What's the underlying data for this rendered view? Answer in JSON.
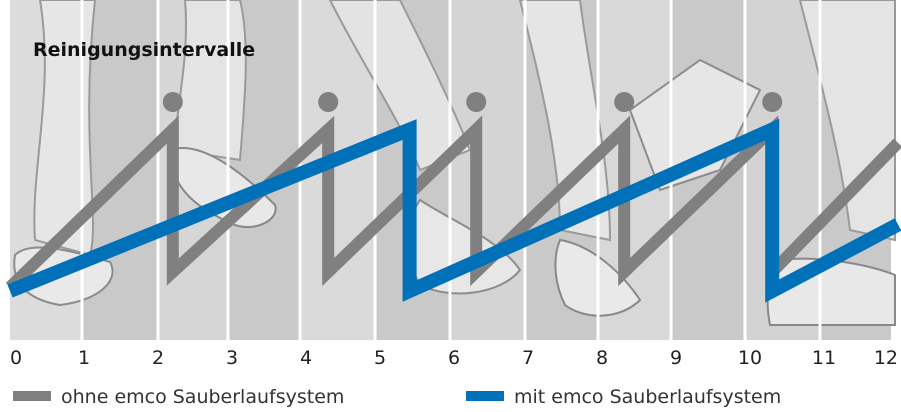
{
  "chart_data": {
    "type": "line",
    "title": "Reinigungsintervalle",
    "xlabel": "",
    "ylabel": "",
    "x_ticks": [
      "0",
      "1",
      "2",
      "3",
      "4",
      "5",
      "6",
      "7",
      "8",
      "9",
      "10",
      "11",
      "12"
    ],
    "xlim": [
      0,
      12
    ],
    "ylim": [
      0,
      100
    ],
    "cleaning_markers": [
      2.2,
      4.3,
      6.3,
      8.3,
      10.3
    ],
    "series": [
      {
        "name": "ohne emco Sauberlaufsystem",
        "color": "#808080",
        "points": [
          [
            0,
            12
          ],
          [
            2.2,
            95
          ],
          [
            2.2,
            20
          ],
          [
            4.3,
            95
          ],
          [
            4.3,
            20
          ],
          [
            6.3,
            95
          ],
          [
            6.3,
            20
          ],
          [
            8.3,
            95
          ],
          [
            8.3,
            20
          ],
          [
            10.3,
            95
          ],
          [
            10.3,
            20
          ],
          [
            12,
            88
          ]
        ]
      },
      {
        "name": "mit emco Sauberlaufsystem",
        "color": "#0070b8",
        "points": [
          [
            0,
            10
          ],
          [
            5.4,
            95
          ],
          [
            5.4,
            10
          ],
          [
            10.3,
            95
          ],
          [
            10.3,
            10
          ],
          [
            12,
            45
          ]
        ]
      }
    ],
    "legend": [
      {
        "label": "ohne emco Sauberlaufsystem",
        "color": "#808080"
      },
      {
        "label": "mit emco Sauberlaufsystem",
        "color": "#0070b8"
      }
    ],
    "legend_position": "bottom"
  }
}
